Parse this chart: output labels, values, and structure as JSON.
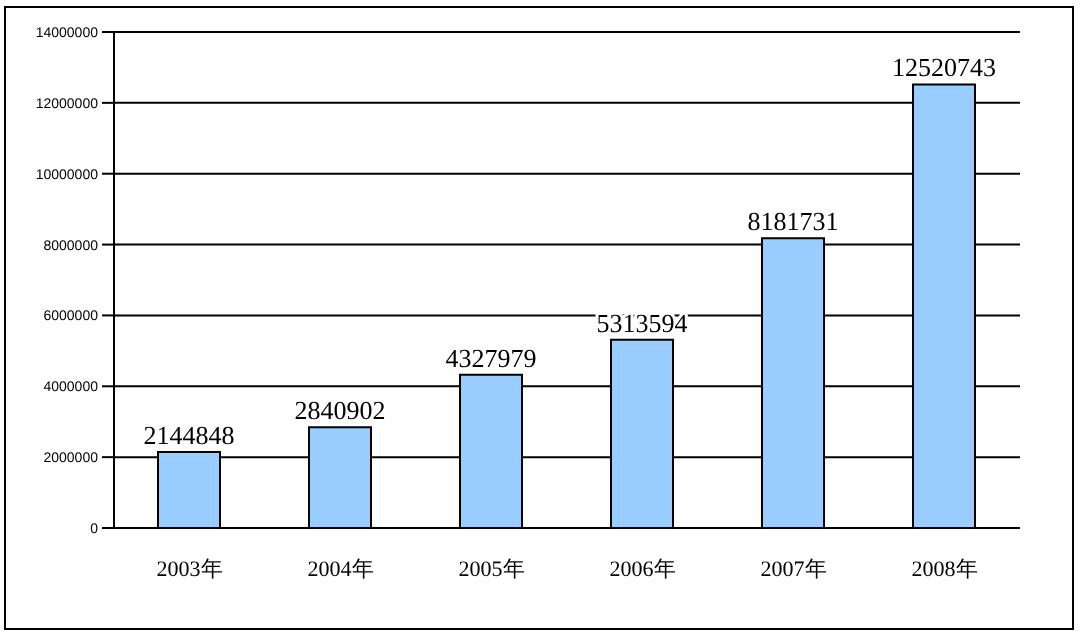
{
  "chart_data": {
    "type": "bar",
    "categories": [
      "2003年",
      "2004年",
      "2005年",
      "2006年",
      "2007年",
      "2008年"
    ],
    "values": [
      2144848,
      2840902,
      4327979,
      5313594,
      8181731,
      12520743
    ],
    "color": "#99ccff",
    "data_labels": true,
    "grid": "y",
    "ylim": [
      0,
      14000000
    ],
    "yticks": [
      0,
      2000000,
      4000000,
      6000000,
      8000000,
      10000000,
      12000000,
      14000000
    ]
  }
}
